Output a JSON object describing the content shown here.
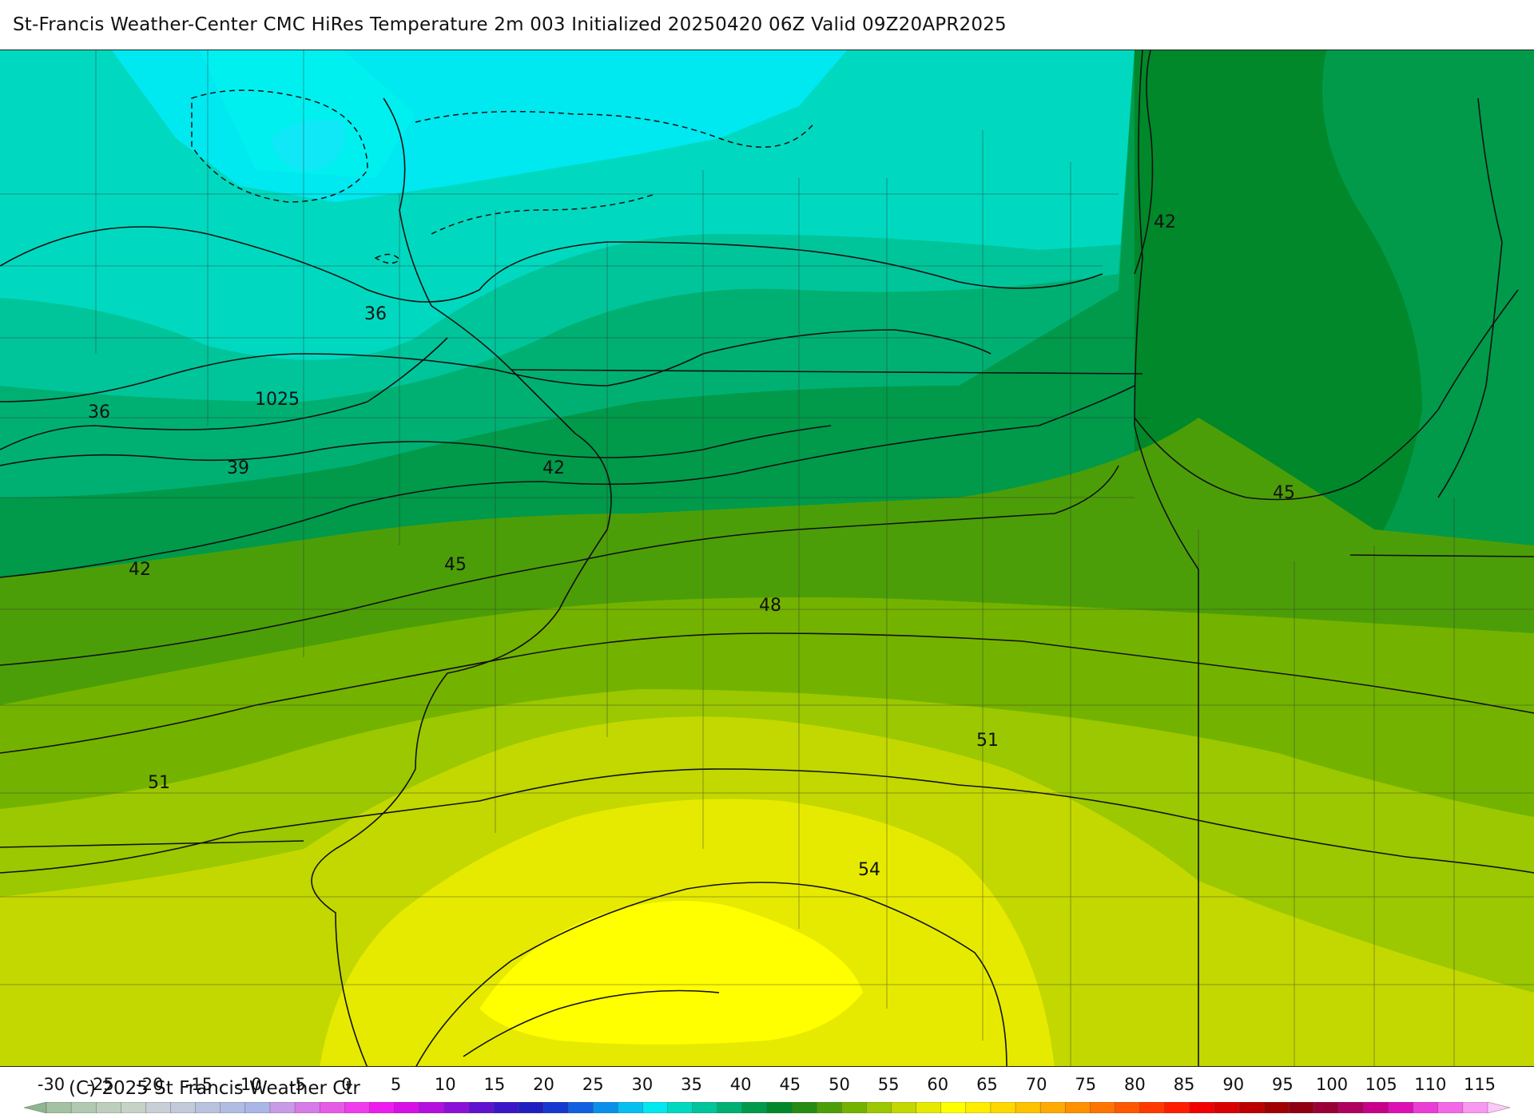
{
  "title": "St-Francis Weather-Center CMC HiRes Temperature 2m  003 Initialized 20250420 06Z Valid 09Z20APR2025",
  "copyright": "(C) 2025 St Francis Weather Ctr",
  "contour_labels": [
    {
      "text": "36",
      "value": 36
    },
    {
      "text": "36",
      "value": 36
    },
    {
      "text": "39",
      "value": 39
    },
    {
      "text": "42",
      "value": 42
    },
    {
      "text": "42",
      "value": 42
    },
    {
      "text": "42",
      "value": 42
    },
    {
      "text": "45",
      "value": 45
    },
    {
      "text": "45",
      "value": 45
    },
    {
      "text": "48",
      "value": 48
    },
    {
      "text": "51",
      "value": 51
    },
    {
      "text": "51",
      "value": 51
    },
    {
      "text": "54",
      "value": 54
    },
    {
      "text": "1025",
      "value": 1025
    }
  ],
  "colorbar": {
    "tick_labels": [
      "-30",
      "-25",
      "-20",
      "-15",
      "-10",
      "-5",
      "0",
      "5",
      "10",
      "15",
      "20",
      "25",
      "30",
      "35",
      "40",
      "45",
      "50",
      "55",
      "60",
      "65",
      "70",
      "75",
      "80",
      "85",
      "90",
      "95",
      "100",
      "105",
      "110",
      "115"
    ],
    "min": -30,
    "max": 120,
    "step": 2.5,
    "colors": [
      "#8fb58f",
      "#a3c2a3",
      "#b0c9b0",
      "#bccfbc",
      "#c6d2c6",
      "#c8cfd6",
      "#c2c9d9",
      "#b8c2dc",
      "#b0bce2",
      "#a9b6e6",
      "#c79be6",
      "#d77be8",
      "#e65ae8",
      "#f03cec",
      "#ef1cf0",
      "#d80fe6",
      "#b40ee0",
      "#8b0fd8",
      "#5f12cf",
      "#3a16c8",
      "#1f1fc0",
      "#1638d0",
      "#1060e0",
      "#0a90ea",
      "#06bff0",
      "#00e8f0",
      "#00d9c0",
      "#00c59a",
      "#00b072",
      "#009a4a",
      "#00882a",
      "#268b12",
      "#4c9e08",
      "#73b300",
      "#9bc800",
      "#c2d800",
      "#e6ea00",
      "#ffff00",
      "#ffec00",
      "#ffd800",
      "#ffc200",
      "#ffaa00",
      "#ff9000",
      "#ff7400",
      "#ff5800",
      "#ff3a00",
      "#ff1c00",
      "#f20000",
      "#d80000",
      "#bc0000",
      "#a00000",
      "#900010",
      "#9a0038",
      "#b00060",
      "#c8008a",
      "#de10b4",
      "#ec3cd6",
      "#f468e8",
      "#f898f0",
      "#fcc8f8"
    ]
  }
}
